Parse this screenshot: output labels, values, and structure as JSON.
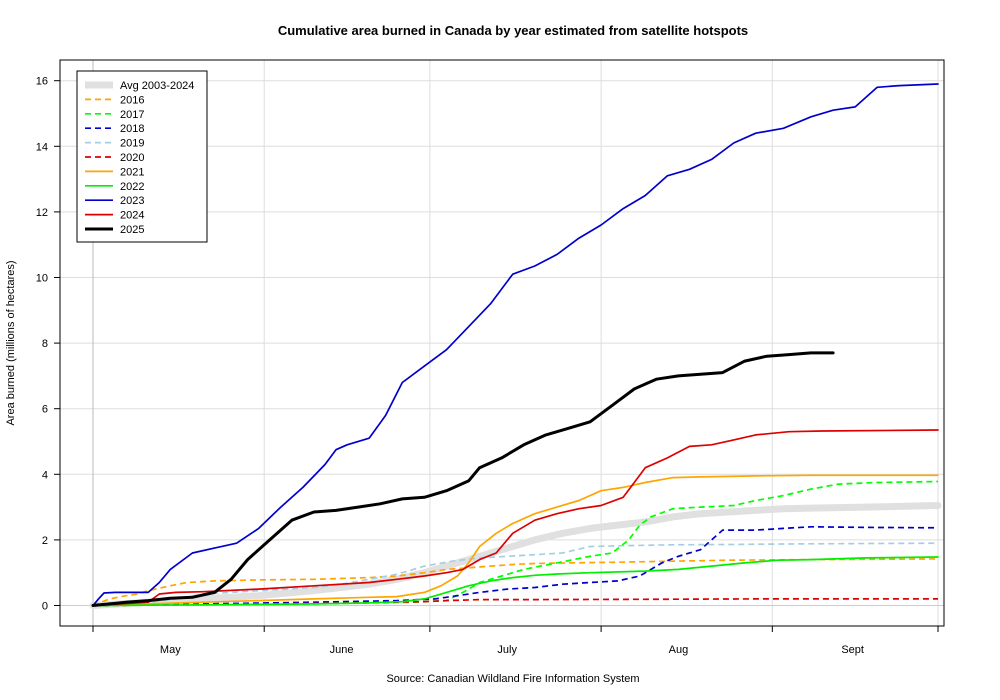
{
  "chart_data": {
    "type": "line",
    "title": "Cumulative area burned in Canada by year estimated from satellite hotspots",
    "ylabel": "Area burned (millions of hectares)",
    "source": "Source: Canadian Wildland Fire Information System",
    "xlim": [
      0,
      153
    ],
    "ylim": [
      -0.6,
      16.7
    ],
    "y_ticks": [
      0,
      2,
      4,
      6,
      8,
      10,
      12,
      14,
      16
    ],
    "x_boundaries": [
      0,
      31,
      61,
      92,
      123,
      153
    ],
    "x_month_labels": [
      {
        "label": "May",
        "x": 14
      },
      {
        "label": "June",
        "x": 45
      },
      {
        "label": "July",
        "x": 75
      },
      {
        "label": "Aug",
        "x": 106
      },
      {
        "label": "Sept",
        "x": 137
      }
    ],
    "grid": true,
    "legend_position": "top-left",
    "series": [
      {
        "name": "Avg 2003-2024",
        "color": "#e0e0e0",
        "dash": "solid",
        "width": 7,
        "points": [
          [
            0,
            0
          ],
          [
            10,
            0.1
          ],
          [
            20,
            0.2
          ],
          [
            30,
            0.3
          ],
          [
            40,
            0.45
          ],
          [
            50,
            0.65
          ],
          [
            55,
            0.8
          ],
          [
            60,
            1.0
          ],
          [
            65,
            1.25
          ],
          [
            70,
            1.5
          ],
          [
            75,
            1.75
          ],
          [
            80,
            2.0
          ],
          [
            85,
            2.2
          ],
          [
            90,
            2.35
          ],
          [
            95,
            2.45
          ],
          [
            100,
            2.55
          ],
          [
            105,
            2.7
          ],
          [
            110,
            2.8
          ],
          [
            115,
            2.85
          ],
          [
            120,
            2.9
          ],
          [
            125,
            2.95
          ],
          [
            130,
            2.97
          ],
          [
            140,
            3.0
          ],
          [
            153,
            3.05
          ]
        ]
      },
      {
        "name": "2016",
        "color": "#ffa500",
        "dash": "dashed",
        "width": 1.7,
        "points": [
          [
            0,
            0
          ],
          [
            3,
            0.2
          ],
          [
            6,
            0.3
          ],
          [
            8,
            0.35
          ],
          [
            10,
            0.45
          ],
          [
            14,
            0.6
          ],
          [
            17,
            0.7
          ],
          [
            22,
            0.75
          ],
          [
            30,
            0.78
          ],
          [
            40,
            0.8
          ],
          [
            50,
            0.85
          ],
          [
            55,
            0.9
          ],
          [
            60,
            1.0
          ],
          [
            64,
            1.1
          ],
          [
            68,
            1.15
          ],
          [
            72,
            1.2
          ],
          [
            76,
            1.25
          ],
          [
            80,
            1.28
          ],
          [
            86,
            1.3
          ],
          [
            95,
            1.32
          ],
          [
            105,
            1.35
          ],
          [
            115,
            1.38
          ],
          [
            130,
            1.4
          ],
          [
            153,
            1.42
          ]
        ]
      },
      {
        "name": "2017",
        "color": "#00ff00",
        "dash": "dashed",
        "width": 1.7,
        "points": [
          [
            0,
            0
          ],
          [
            20,
            0.02
          ],
          [
            40,
            0.05
          ],
          [
            58,
            0.1
          ],
          [
            64,
            0.15
          ],
          [
            67,
            0.4
          ],
          [
            70,
            0.7
          ],
          [
            74,
            0.9
          ],
          [
            78,
            1.1
          ],
          [
            84,
            1.3
          ],
          [
            90,
            1.5
          ],
          [
            94,
            1.6
          ],
          [
            97,
            2.0
          ],
          [
            99,
            2.45
          ],
          [
            101,
            2.7
          ],
          [
            105,
            2.95
          ],
          [
            110,
            3.0
          ],
          [
            116,
            3.05
          ],
          [
            120,
            3.2
          ],
          [
            125,
            3.35
          ],
          [
            130,
            3.55
          ],
          [
            135,
            3.7
          ],
          [
            142,
            3.75
          ],
          [
            153,
            3.78
          ]
        ]
      },
      {
        "name": "2018",
        "color": "#0000cd",
        "dash": "dashed",
        "width": 1.7,
        "points": [
          [
            0,
            0
          ],
          [
            20,
            0.05
          ],
          [
            40,
            0.1
          ],
          [
            55,
            0.15
          ],
          [
            62,
            0.2
          ],
          [
            66,
            0.3
          ],
          [
            70,
            0.4
          ],
          [
            75,
            0.5
          ],
          [
            80,
            0.55
          ],
          [
            85,
            0.65
          ],
          [
            90,
            0.7
          ],
          [
            95,
            0.75
          ],
          [
            99,
            0.9
          ],
          [
            103,
            1.3
          ],
          [
            106,
            1.5
          ],
          [
            110,
            1.7
          ],
          [
            114,
            2.3
          ],
          [
            120,
            2.3
          ],
          [
            125,
            2.35
          ],
          [
            130,
            2.4
          ],
          [
            140,
            2.38
          ],
          [
            153,
            2.37
          ]
        ]
      },
      {
        "name": "2019",
        "color": "#a6cee3",
        "dash": "dashed",
        "width": 1.7,
        "points": [
          [
            0,
            0
          ],
          [
            10,
            0.1
          ],
          [
            15,
            0.2
          ],
          [
            20,
            0.35
          ],
          [
            30,
            0.45
          ],
          [
            40,
            0.55
          ],
          [
            45,
            0.65
          ],
          [
            50,
            0.8
          ],
          [
            55,
            0.95
          ],
          [
            60,
            1.2
          ],
          [
            65,
            1.35
          ],
          [
            70,
            1.45
          ],
          [
            75,
            1.5
          ],
          [
            80,
            1.55
          ],
          [
            85,
            1.6
          ],
          [
            90,
            1.8
          ],
          [
            95,
            1.82
          ],
          [
            105,
            1.85
          ],
          [
            115,
            1.86
          ],
          [
            130,
            1.88
          ],
          [
            153,
            1.9
          ]
        ]
      },
      {
        "name": "2020",
        "color": "#dd0000",
        "dash": "dashed",
        "width": 1.7,
        "points": [
          [
            0,
            0
          ],
          [
            20,
            0.03
          ],
          [
            40,
            0.06
          ],
          [
            55,
            0.1
          ],
          [
            60,
            0.12
          ],
          [
            64,
            0.15
          ],
          [
            70,
            0.18
          ],
          [
            80,
            0.18
          ],
          [
            100,
            0.19
          ],
          [
            120,
            0.2
          ],
          [
            153,
            0.2
          ]
        ]
      },
      {
        "name": "2021",
        "color": "#ffa500",
        "dash": "solid",
        "width": 1.7,
        "points": [
          [
            0,
            0
          ],
          [
            10,
            0.05
          ],
          [
            20,
            0.1
          ],
          [
            30,
            0.15
          ],
          [
            40,
            0.2
          ],
          [
            50,
            0.25
          ],
          [
            55,
            0.27
          ],
          [
            60,
            0.4
          ],
          [
            63,
            0.6
          ],
          [
            66,
            0.9
          ],
          [
            68,
            1.3
          ],
          [
            70,
            1.8
          ],
          [
            73,
            2.2
          ],
          [
            76,
            2.5
          ],
          [
            80,
            2.8
          ],
          [
            84,
            3.0
          ],
          [
            88,
            3.2
          ],
          [
            92,
            3.5
          ],
          [
            96,
            3.6
          ],
          [
            100,
            3.75
          ],
          [
            105,
            3.9
          ],
          [
            110,
            3.92
          ],
          [
            120,
            3.95
          ],
          [
            130,
            3.97
          ],
          [
            153,
            3.97
          ]
        ]
      },
      {
        "name": "2022",
        "color": "#00ee00",
        "dash": "solid",
        "width": 1.7,
        "points": [
          [
            0,
            0
          ],
          [
            20,
            0.02
          ],
          [
            40,
            0.05
          ],
          [
            50,
            0.08
          ],
          [
            56,
            0.12
          ],
          [
            60,
            0.2
          ],
          [
            64,
            0.4
          ],
          [
            68,
            0.6
          ],
          [
            72,
            0.75
          ],
          [
            76,
            0.85
          ],
          [
            80,
            0.92
          ],
          [
            84,
            0.96
          ],
          [
            90,
            1.0
          ],
          [
            100,
            1.05
          ],
          [
            106,
            1.1
          ],
          [
            112,
            1.2
          ],
          [
            118,
            1.3
          ],
          [
            124,
            1.38
          ],
          [
            130,
            1.4
          ],
          [
            140,
            1.45
          ],
          [
            153,
            1.48
          ]
        ]
      },
      {
        "name": "2023",
        "color": "#0000cd",
        "dash": "solid",
        "width": 1.7,
        "points": [
          [
            0,
            0
          ],
          [
            0.5,
            0.1
          ],
          [
            1,
            0.2
          ],
          [
            2,
            0.38
          ],
          [
            4,
            0.4
          ],
          [
            10,
            0.4
          ],
          [
            12,
            0.7
          ],
          [
            14,
            1.1
          ],
          [
            18,
            1.6
          ],
          [
            22,
            1.75
          ],
          [
            26,
            1.9
          ],
          [
            30,
            2.35
          ],
          [
            34,
            3.0
          ],
          [
            38,
            3.6
          ],
          [
            42,
            4.3
          ],
          [
            44,
            4.75
          ],
          [
            46,
            4.9
          ],
          [
            50,
            5.1
          ],
          [
            53,
            5.8
          ],
          [
            56,
            6.8
          ],
          [
            60,
            7.3
          ],
          [
            64,
            7.8
          ],
          [
            68,
            8.5
          ],
          [
            72,
            9.2
          ],
          [
            76,
            10.1
          ],
          [
            80,
            10.35
          ],
          [
            84,
            10.7
          ],
          [
            88,
            11.2
          ],
          [
            92,
            11.6
          ],
          [
            96,
            12.1
          ],
          [
            100,
            12.5
          ],
          [
            104,
            13.1
          ],
          [
            108,
            13.3
          ],
          [
            112,
            13.6
          ],
          [
            116,
            14.1
          ],
          [
            120,
            14.4
          ],
          [
            125,
            14.55
          ],
          [
            130,
            14.9
          ],
          [
            134,
            15.1
          ],
          [
            138,
            15.2
          ],
          [
            142,
            15.8
          ],
          [
            146,
            15.85
          ],
          [
            153,
            15.9
          ]
        ]
      },
      {
        "name": "2024",
        "color": "#dd0000",
        "dash": "solid",
        "width": 1.7,
        "points": [
          [
            0,
            0
          ],
          [
            5,
            0.05
          ],
          [
            10,
            0.1
          ],
          [
            12,
            0.35
          ],
          [
            15,
            0.4
          ],
          [
            20,
            0.42
          ],
          [
            30,
            0.5
          ],
          [
            40,
            0.6
          ],
          [
            50,
            0.7
          ],
          [
            55,
            0.8
          ],
          [
            60,
            0.9
          ],
          [
            64,
            1.0
          ],
          [
            67,
            1.1
          ],
          [
            70,
            1.4
          ],
          [
            73,
            1.6
          ],
          [
            76,
            2.2
          ],
          [
            80,
            2.6
          ],
          [
            84,
            2.8
          ],
          [
            88,
            2.95
          ],
          [
            92,
            3.05
          ],
          [
            96,
            3.3
          ],
          [
            100,
            4.2
          ],
          [
            104,
            4.5
          ],
          [
            108,
            4.85
          ],
          [
            112,
            4.9
          ],
          [
            116,
            5.05
          ],
          [
            120,
            5.2
          ],
          [
            126,
            5.3
          ],
          [
            132,
            5.32
          ],
          [
            153,
            5.35
          ]
        ]
      },
      {
        "name": "2025",
        "color": "#000000",
        "dash": "solid",
        "width": 3,
        "points": [
          [
            0,
            0
          ],
          [
            6,
            0.1
          ],
          [
            10,
            0.15
          ],
          [
            14,
            0.22
          ],
          [
            18,
            0.25
          ],
          [
            22,
            0.4
          ],
          [
            25,
            0.8
          ],
          [
            28,
            1.4
          ],
          [
            32,
            2.0
          ],
          [
            36,
            2.6
          ],
          [
            40,
            2.85
          ],
          [
            44,
            2.9
          ],
          [
            48,
            3.0
          ],
          [
            52,
            3.1
          ],
          [
            56,
            3.25
          ],
          [
            60,
            3.3
          ],
          [
            64,
            3.5
          ],
          [
            68,
            3.8
          ],
          [
            70,
            4.2
          ],
          [
            74,
            4.5
          ],
          [
            78,
            4.9
          ],
          [
            82,
            5.2
          ],
          [
            86,
            5.4
          ],
          [
            90,
            5.6
          ],
          [
            94,
            6.1
          ],
          [
            98,
            6.6
          ],
          [
            102,
            6.9
          ],
          [
            106,
            7.0
          ],
          [
            110,
            7.05
          ],
          [
            114,
            7.1
          ],
          [
            118,
            7.45
          ],
          [
            122,
            7.6
          ],
          [
            126,
            7.65
          ],
          [
            130,
            7.7
          ],
          [
            134,
            7.7
          ]
        ]
      }
    ]
  }
}
